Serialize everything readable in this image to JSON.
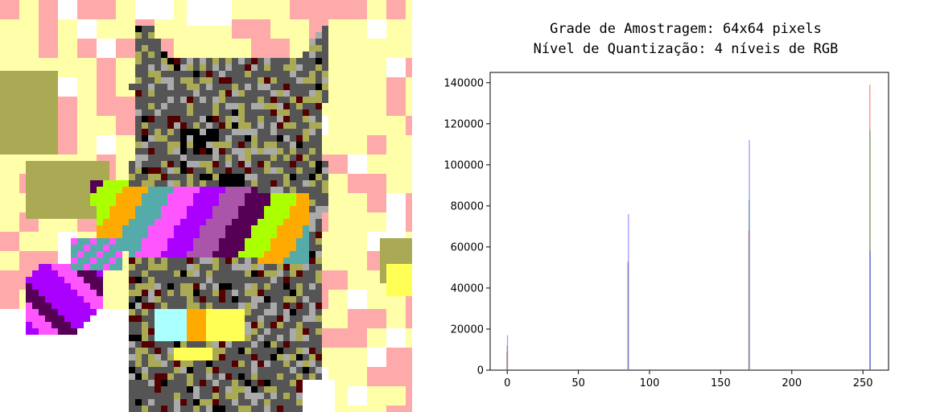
{
  "image": {
    "grid": 64,
    "levels": [
      0,
      85,
      170,
      255
    ],
    "palette": {
      "white": "#ffffff",
      "light_yellow": "#ffffaa",
      "pink": "#ffaaaa",
      "olive": "#aaaa55",
      "gray": "#555555",
      "light_gray": "#aaaaaa",
      "dark_red": "#550000",
      "black": "#000000",
      "purple": "#550055",
      "magenta": "#ff55ff",
      "violet": "#aa00ff",
      "orange": "#ffaa00",
      "lime": "#aaff00",
      "teal": "#55aaaa",
      "cyan": "#aaffff",
      "yellow": "#ffff55",
      "mauve": "#aa55aa"
    }
  },
  "chart_data": {
    "type": "bar",
    "title": [
      "Grade de Amostragem: 64x64 pixels",
      "Nível de Quantização: 4 níveis de RGB"
    ],
    "xlabel": "",
    "ylabel": "",
    "xlim": [
      -12,
      268
    ],
    "ylim": [
      0,
      145000
    ],
    "x_ticks": [
      0,
      50,
      100,
      150,
      200,
      250
    ],
    "y_ticks": [
      0,
      20000,
      40000,
      60000,
      80000,
      100000,
      120000,
      140000
    ],
    "x": [
      0,
      85,
      170,
      255
    ],
    "series": [
      {
        "color": "#ff4444",
        "values": [
          9000,
          53000,
          68000,
          139000
        ]
      },
      {
        "color": "#44aa44",
        "values": [
          12000,
          52000,
          83000,
          117000
        ]
      },
      {
        "color": "#6666ff",
        "values": [
          17000,
          76000,
          112000,
          58000
        ]
      }
    ]
  }
}
